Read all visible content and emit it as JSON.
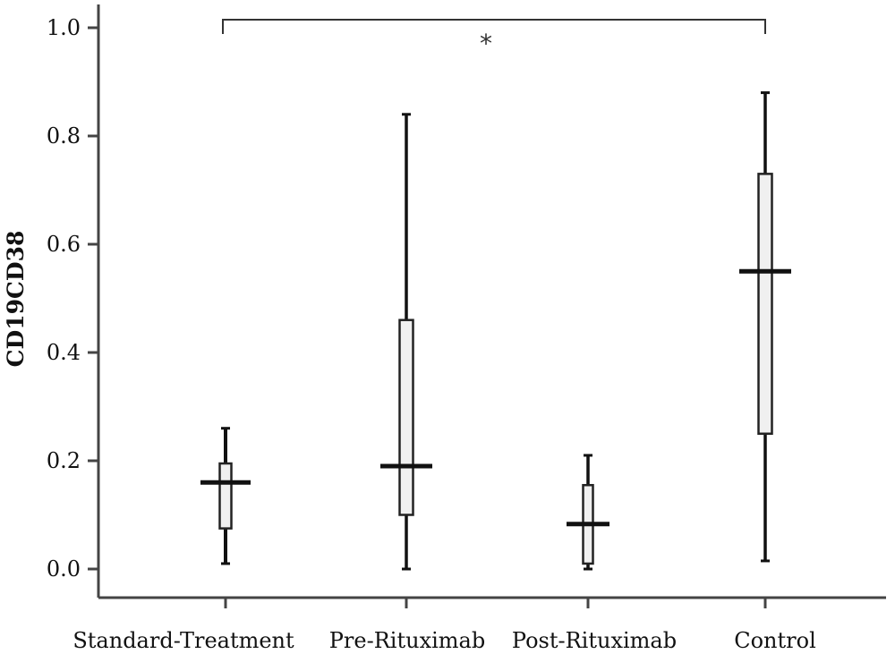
{
  "chart_data": {
    "type": "box",
    "ylabel": "CD19CD38",
    "ylim": [
      0,
      1.0
    ],
    "yticks": [
      "0.0",
      "0.2",
      "0.4",
      "0.6",
      "0.8",
      "1.0"
    ],
    "grid": false,
    "categories": [
      "Standard-Treatment",
      "Pre-Rituximab",
      "Post-Rituximab",
      "Control"
    ],
    "boxes": [
      {
        "min": 0.01,
        "q1": 0.075,
        "median": 0.16,
        "q3": 0.195,
        "max": 0.26
      },
      {
        "min": 0.0,
        "q1": 0.1,
        "median": 0.19,
        "q3": 0.46,
        "max": 0.84
      },
      {
        "min": 0.0,
        "q1": 0.01,
        "median": 0.083,
        "q3": 0.155,
        "max": 0.21
      },
      {
        "min": 0.015,
        "q1": 0.25,
        "median": 0.55,
        "q3": 0.73,
        "max": 0.88
      }
    ],
    "annotations": [
      {
        "text": "*",
        "from": "Standard-Treatment",
        "to": "Control",
        "y": 1.0
      }
    ]
  }
}
